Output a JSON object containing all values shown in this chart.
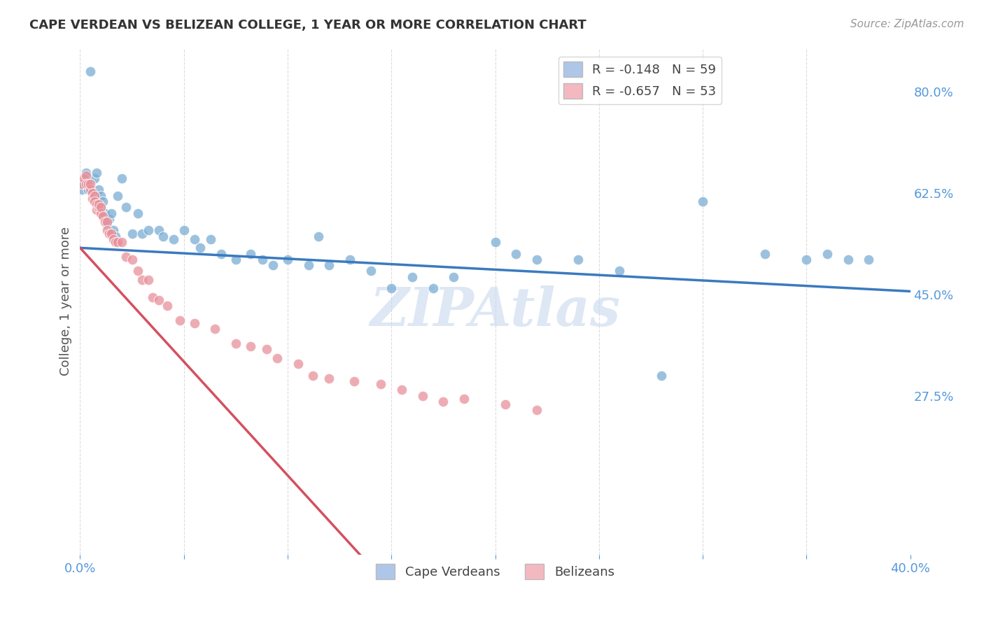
{
  "title": "CAPE VERDEAN VS BELIZEAN COLLEGE, 1 YEAR OR MORE CORRELATION CHART",
  "source": "Source: ZipAtlas.com",
  "ylabel": "College, 1 year or more",
  "x_min": 0.0,
  "x_max": 0.4,
  "y_min": 0.0,
  "y_max": 0.875,
  "x_ticks": [
    0.0,
    0.05,
    0.1,
    0.15,
    0.2,
    0.25,
    0.3,
    0.35,
    0.4
  ],
  "x_tick_labels": [
    "0.0%",
    "",
    "",
    "",
    "",
    "",
    "",
    "",
    "40.0%"
  ],
  "y_tick_labels_right": [
    "80.0%",
    "62.5%",
    "45.0%",
    "27.5%"
  ],
  "y_tick_values_right": [
    0.8,
    0.625,
    0.45,
    0.275
  ],
  "watermark": "ZIPAtlas",
  "blue_scatter_x": [
    0.001,
    0.002,
    0.003,
    0.004,
    0.005,
    0.006,
    0.007,
    0.008,
    0.009,
    0.01,
    0.01,
    0.011,
    0.012,
    0.013,
    0.014,
    0.015,
    0.016,
    0.017,
    0.018,
    0.02,
    0.022,
    0.025,
    0.028,
    0.03,
    0.033,
    0.038,
    0.04,
    0.045,
    0.05,
    0.055,
    0.058,
    0.063,
    0.068,
    0.075,
    0.082,
    0.088,
    0.093,
    0.1,
    0.11,
    0.115,
    0.12,
    0.13,
    0.14,
    0.15,
    0.16,
    0.17,
    0.18,
    0.2,
    0.21,
    0.22,
    0.24,
    0.26,
    0.28,
    0.3,
    0.33,
    0.35,
    0.36,
    0.37,
    0.38
  ],
  "blue_scatter_y": [
    0.63,
    0.64,
    0.66,
    0.63,
    0.835,
    0.625,
    0.65,
    0.66,
    0.63,
    0.62,
    0.6,
    0.61,
    0.59,
    0.57,
    0.58,
    0.59,
    0.56,
    0.55,
    0.62,
    0.65,
    0.6,
    0.555,
    0.59,
    0.555,
    0.56,
    0.56,
    0.55,
    0.545,
    0.56,
    0.545,
    0.53,
    0.545,
    0.52,
    0.51,
    0.52,
    0.51,
    0.5,
    0.51,
    0.5,
    0.55,
    0.5,
    0.51,
    0.49,
    0.46,
    0.48,
    0.46,
    0.48,
    0.54,
    0.52,
    0.51,
    0.51,
    0.49,
    0.31,
    0.61,
    0.52,
    0.51,
    0.52,
    0.51,
    0.51
  ],
  "pink_scatter_x": [
    0.001,
    0.002,
    0.003,
    0.003,
    0.004,
    0.005,
    0.005,
    0.006,
    0.006,
    0.007,
    0.007,
    0.008,
    0.008,
    0.009,
    0.009,
    0.01,
    0.01,
    0.011,
    0.012,
    0.013,
    0.013,
    0.014,
    0.015,
    0.016,
    0.017,
    0.018,
    0.02,
    0.022,
    0.025,
    0.028,
    0.03,
    0.033,
    0.035,
    0.038,
    0.042,
    0.048,
    0.055,
    0.065,
    0.075,
    0.082,
    0.09,
    0.095,
    0.105,
    0.112,
    0.12,
    0.132,
    0.145,
    0.155,
    0.165,
    0.175,
    0.185,
    0.205,
    0.22
  ],
  "pink_scatter_y": [
    0.64,
    0.65,
    0.655,
    0.64,
    0.64,
    0.63,
    0.64,
    0.625,
    0.615,
    0.62,
    0.61,
    0.605,
    0.595,
    0.6,
    0.605,
    0.59,
    0.6,
    0.585,
    0.575,
    0.575,
    0.56,
    0.555,
    0.555,
    0.545,
    0.54,
    0.54,
    0.54,
    0.515,
    0.51,
    0.49,
    0.475,
    0.475,
    0.445,
    0.44,
    0.43,
    0.405,
    0.4,
    0.39,
    0.365,
    0.36,
    0.355,
    0.34,
    0.33,
    0.31,
    0.305,
    0.3,
    0.295,
    0.285,
    0.275,
    0.265,
    0.27,
    0.26,
    0.25
  ],
  "blue_line_x": [
    0.0,
    0.4
  ],
  "blue_line_y": [
    0.53,
    0.455
  ],
  "pink_line_x": [
    0.0,
    0.135
  ],
  "pink_line_y": [
    0.53,
    0.0
  ],
  "blue_color": "#7aadd4",
  "pink_color": "#e8909a",
  "blue_line_color": "#3a7abf",
  "pink_line_color": "#d45060",
  "background_color": "#ffffff",
  "grid_color": "#cccccc",
  "title_color": "#333333",
  "axis_color": "#5599dd",
  "watermark_color": "#c8d8ee",
  "legend_blue_label": "R = -0.148   N = 59",
  "legend_pink_label": "R = -0.657   N = 53",
  "legend_blue_color": "#aec6e8",
  "legend_pink_color": "#f4b8c1"
}
